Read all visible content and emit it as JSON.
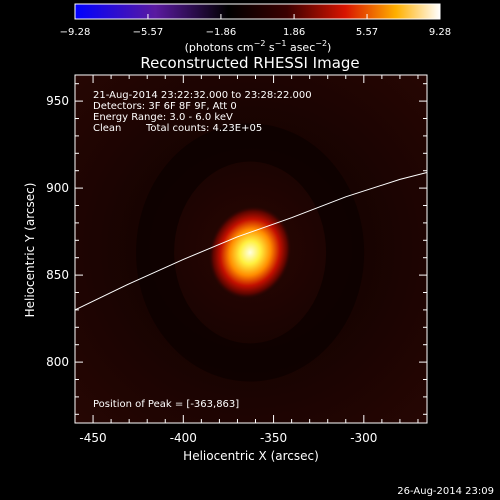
{
  "chart_data": {
    "type": "heatmap",
    "title": "Reconstructed RHESSI Image",
    "xlabel": "Heliocentric X (arcsec)",
    "ylabel": "Heliocentric Y (arcsec)",
    "xlim": [
      -460,
      -265
    ],
    "ylim": [
      765,
      965
    ],
    "x_ticks": [
      -450,
      -400,
      -350,
      -300
    ],
    "y_ticks": [
      800,
      850,
      900,
      950
    ],
    "colorbar": {
      "min": -9.28,
      "max": 9.28,
      "ticks": [
        "-9.28",
        "-5.57",
        "-1.86",
        "1.86",
        "5.57",
        "9.28"
      ],
      "units": "(photons cm",
      "units_exp1": "−2",
      "units_mid": " s",
      "units_exp2": "−1",
      "units_end": " asec",
      "units_exp3": "−2",
      "units_close": ")"
    },
    "source": {
      "x": -363,
      "y": 863,
      "sigma_x": 7,
      "sigma_y": 9
    },
    "limb_curve": [
      [
        -460,
        830
      ],
      [
        -430,
        845
      ],
      [
        -400,
        859
      ],
      [
        -370,
        872
      ],
      [
        -340,
        883
      ],
      [
        -310,
        895
      ],
      [
        -280,
        905
      ],
      [
        -265,
        909
      ]
    ],
    "annotations": {
      "time_range": "21-Aug-2014 23:22:32.000 to 23:28:22.000",
      "detectors": "Detectors: 3F 6F 8F 9F, Att 0",
      "energy": "Energy Range: 3.0 - 6.0 keV",
      "clean": "Clean",
      "counts": "Total counts: 4.23E+05",
      "peak": "Position of Peak = [-363,863]"
    },
    "footer_date": "26-Aug-2014 23:09"
  }
}
